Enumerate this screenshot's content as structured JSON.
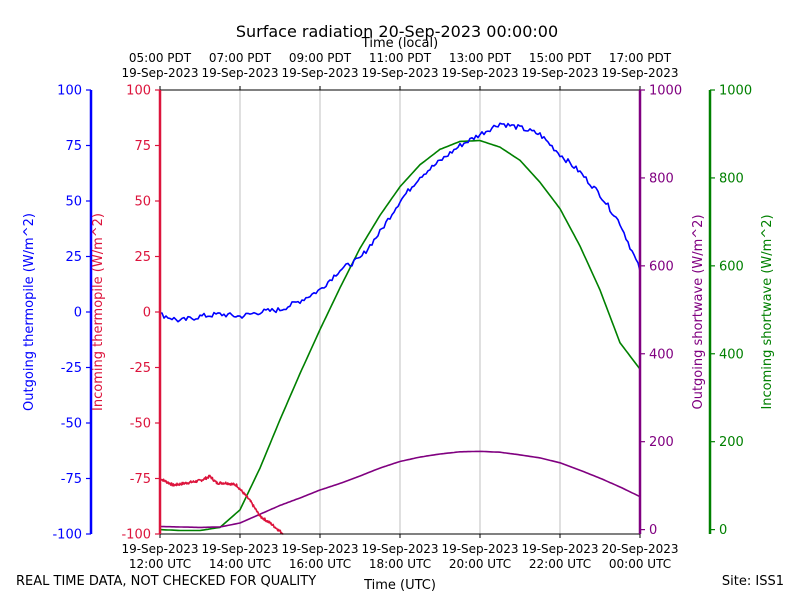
{
  "chart_data": {
    "type": "line",
    "title": "Surface radiation 20-Sep-2023 00:00:00",
    "xlabel": "Time (UTC)",
    "x2label": "Time (local)",
    "footer_left": "REAL TIME DATA, NOT CHECKED FOR QUALITY",
    "footer_right": "Site: ISS1",
    "grid": true,
    "x_range": [
      "2023-09-19T12:00",
      "2023-09-20T00:00"
    ],
    "x_ticks_bottom": [
      {
        "x": "2023-09-19T12:00",
        "line1": "19-Sep-2023",
        "line2": "12:00 UTC"
      },
      {
        "x": "2023-09-19T14:00",
        "line1": "19-Sep-2023",
        "line2": "14:00 UTC"
      },
      {
        "x": "2023-09-19T16:00",
        "line1": "19-Sep-2023",
        "line2": "16:00 UTC"
      },
      {
        "x": "2023-09-19T18:00",
        "line1": "19-Sep-2023",
        "line2": "18:00 UTC"
      },
      {
        "x": "2023-09-19T20:00",
        "line1": "19-Sep-2023",
        "line2": "20:00 UTC"
      },
      {
        "x": "2023-09-19T22:00",
        "line1": "19-Sep-2023",
        "line2": "22:00 UTC"
      },
      {
        "x": "2023-09-20T00:00",
        "line1": "20-Sep-2023",
        "line2": "00:00 UTC"
      }
    ],
    "x_ticks_top": [
      {
        "x": "2023-09-19T12:00",
        "line1": "05:00 PDT",
        "line2": "19-Sep-2023"
      },
      {
        "x": "2023-09-19T14:00",
        "line1": "07:00 PDT",
        "line2": "19-Sep-2023"
      },
      {
        "x": "2023-09-19T16:00",
        "line1": "09:00 PDT",
        "line2": "19-Sep-2023"
      },
      {
        "x": "2023-09-19T18:00",
        "line1": "11:00 PDT",
        "line2": "19-Sep-2023"
      },
      {
        "x": "2023-09-19T20:00",
        "line1": "13:00 PDT",
        "line2": "19-Sep-2023"
      },
      {
        "x": "2023-09-19T22:00",
        "line1": "15:00 PDT",
        "line2": "19-Sep-2023"
      },
      {
        "x": "2023-09-20T00:00",
        "line1": "17:00 PDT",
        "line2": "19-Sep-2023"
      }
    ],
    "axes": [
      {
        "id": "out_thermo",
        "label": "Outgoing thermopile (W/m^2)",
        "color": "#0000ff",
        "range": [
          -100,
          100
        ],
        "ticks": [
          -100,
          -75,
          -50,
          -25,
          0,
          25,
          50,
          75,
          100
        ],
        "side": "left-outer"
      },
      {
        "id": "in_thermo",
        "label": "Incoming thermopile (W/m^2)",
        "color": "#dc143c",
        "range": [
          -100,
          100
        ],
        "ticks": [
          -100,
          -75,
          -50,
          -25,
          0,
          25,
          50,
          75,
          100
        ],
        "side": "left-inner"
      },
      {
        "id": "out_sw",
        "label": "Outgoing shortwave (W/m^2)",
        "color": "#800080",
        "range": [
          -10,
          1000
        ],
        "ticks": [
          0,
          200,
          400,
          600,
          800,
          1000
        ],
        "side": "right-inner"
      },
      {
        "id": "in_sw",
        "label": "Incoming shortwave (W/m^2)",
        "color": "#008000",
        "range": [
          -10,
          1000
        ],
        "ticks": [
          0,
          200,
          400,
          600,
          800,
          1000
        ],
        "side": "right-outer"
      }
    ],
    "series": [
      {
        "axis": "out_thermo",
        "color": "#0000ff",
        "noise": 1.2,
        "x": [
          "2023-09-19T12:00",
          "2023-09-19T12:30",
          "2023-09-19T13:00",
          "2023-09-19T13:30",
          "2023-09-19T14:00",
          "2023-09-19T14:30",
          "2023-09-19T15:00",
          "2023-09-19T15:30",
          "2023-09-19T16:00",
          "2023-09-19T16:30",
          "2023-09-19T17:00",
          "2023-09-19T17:30",
          "2023-09-19T18:00",
          "2023-09-19T18:30",
          "2023-09-19T19:00",
          "2023-09-19T19:30",
          "2023-09-19T20:00",
          "2023-09-19T20:30",
          "2023-09-19T21:00",
          "2023-09-19T21:30",
          "2023-09-19T22:00",
          "2023-09-19T22:30",
          "2023-09-19T23:00",
          "2023-09-19T23:30",
          "2023-09-20T00:00"
        ],
        "y": [
          -1,
          -4,
          -2,
          -1,
          -2,
          0,
          1,
          5,
          10,
          19,
          24,
          36,
          50,
          61,
          68,
          75,
          80,
          85,
          83,
          80,
          71,
          63,
          53,
          40,
          19
        ]
      },
      {
        "axis": "in_thermo",
        "color": "#dc143c",
        "noise": 0.6,
        "x": [
          "2023-09-19T12:00",
          "2023-09-19T12:20",
          "2023-09-19T12:40",
          "2023-09-19T13:00",
          "2023-09-19T13:15",
          "2023-09-19T13:25",
          "2023-09-19T13:40",
          "2023-09-19T13:55",
          "2023-09-19T14:15",
          "2023-09-19T14:30",
          "2023-09-19T14:45",
          "2023-09-19T15:05"
        ],
        "y": [
          -75,
          -78,
          -77,
          -76,
          -74,
          -77,
          -77,
          -78,
          -85,
          -92,
          -95,
          -100
        ]
      },
      {
        "axis": "out_sw",
        "color": "#800080",
        "noise": 0,
        "x": [
          "2023-09-19T12:00",
          "2023-09-19T12:30",
          "2023-09-19T13:00",
          "2023-09-19T13:30",
          "2023-09-19T14:00",
          "2023-09-19T14:30",
          "2023-09-19T15:00",
          "2023-09-19T15:30",
          "2023-09-19T16:00",
          "2023-09-19T16:30",
          "2023-09-19T17:00",
          "2023-09-19T17:30",
          "2023-09-19T18:00",
          "2023-09-19T18:30",
          "2023-09-19T19:00",
          "2023-09-19T19:30",
          "2023-09-19T20:00",
          "2023-09-19T20:30",
          "2023-09-19T21:00",
          "2023-09-19T21:30",
          "2023-09-19T22:00",
          "2023-09-19T22:30",
          "2023-09-19T23:00",
          "2023-09-19T23:30",
          "2023-09-20T00:00"
        ],
        "y": [
          7,
          6,
          5,
          6,
          15,
          35,
          55,
          72,
          90,
          105,
          122,
          140,
          155,
          165,
          172,
          177,
          178,
          176,
          170,
          163,
          152,
          135,
          117,
          97,
          75
        ]
      },
      {
        "axis": "in_sw",
        "color": "#008000",
        "noise": 0,
        "x": [
          "2023-09-19T12:00",
          "2023-09-19T12:30",
          "2023-09-19T13:00",
          "2023-09-19T13:30",
          "2023-09-19T14:00",
          "2023-09-19T14:30",
          "2023-09-19T15:00",
          "2023-09-19T15:30",
          "2023-09-19T16:00",
          "2023-09-19T16:30",
          "2023-09-19T17:00",
          "2023-09-19T17:30",
          "2023-09-19T18:00",
          "2023-09-19T18:30",
          "2023-09-19T19:00",
          "2023-09-19T19:30",
          "2023-09-19T20:00",
          "2023-09-19T20:30",
          "2023-09-19T21:00",
          "2023-09-19T21:30",
          "2023-09-19T22:00",
          "2023-09-19T22:30",
          "2023-09-19T23:00",
          "2023-09-19T23:30",
          "2023-09-20T00:00"
        ],
        "y": [
          0,
          -2,
          -2,
          5,
          45,
          140,
          250,
          355,
          455,
          550,
          640,
          715,
          780,
          830,
          865,
          883,
          885,
          870,
          840,
          790,
          730,
          645,
          545,
          425,
          365
        ]
      }
    ]
  }
}
